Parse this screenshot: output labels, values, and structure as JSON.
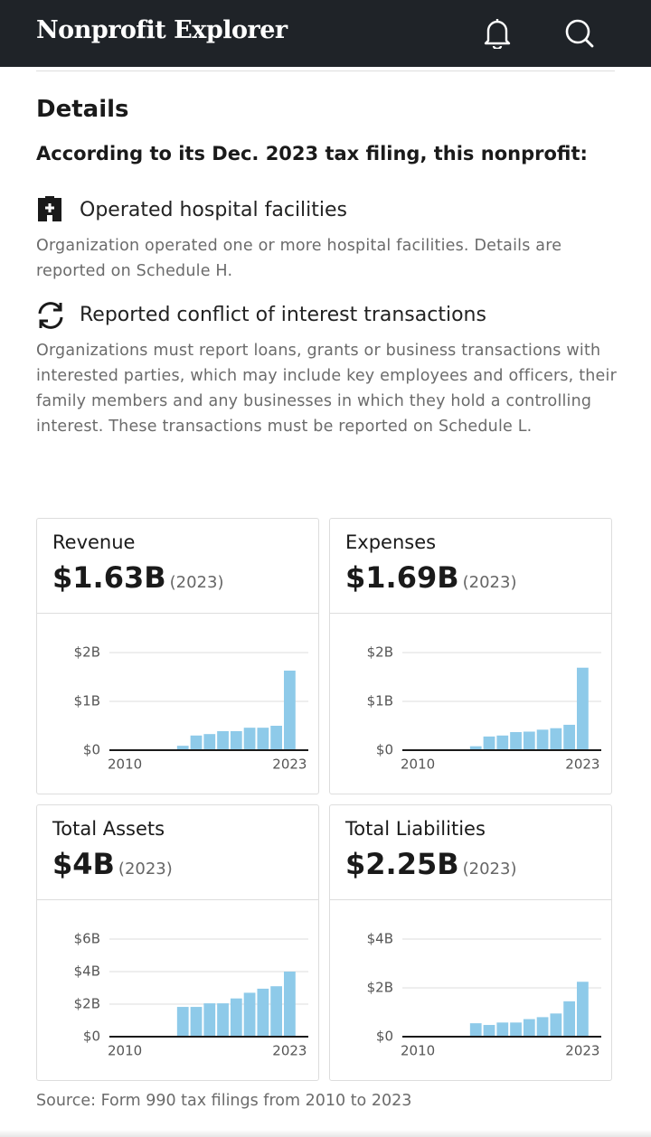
{
  "header": {
    "title": "Nonprofit Explorer"
  },
  "details": {
    "title": "Details",
    "intro": "According to its Dec. 2023 tax filing, this nonprofit:",
    "items": [
      {
        "title": "Operated hospital facilities",
        "text": "Organization operated one or more hospital facilities. Details are reported on Schedule H."
      },
      {
        "title": "Reported conflict of interest transactions",
        "text": "Organizations must report loans, grants or business transactions with interested parties, which may include key employees and officers, their family members and any businesses in which they hold a controlling interest. These transactions must be reported on Schedule L."
      }
    ]
  },
  "chart_data": [
    {
      "type": "bar",
      "title": "Revenue",
      "headline": "$1.63B",
      "year": "(2023)",
      "color": "#8ecae9",
      "categories": [
        "2010",
        null,
        null,
        null,
        null,
        null,
        null,
        null,
        null,
        null,
        null,
        null,
        null,
        "2023"
      ],
      "values": [
        0,
        0,
        0,
        0,
        0,
        0.09,
        0.3,
        0.33,
        0.39,
        0.39,
        0.46,
        0.46,
        0.5,
        1.63
      ],
      "ylim": [
        0,
        2
      ],
      "yticks": [
        {
          "value": 0,
          "label": "$0"
        },
        {
          "value": 1,
          "label": "$1B"
        },
        {
          "value": 2,
          "label": "$2B"
        }
      ],
      "grid": true
    },
    {
      "type": "bar",
      "title": "Expenses",
      "headline": "$1.69B",
      "year": "(2023)",
      "color": "#8ecae9",
      "categories": [
        "2010",
        null,
        null,
        null,
        null,
        null,
        null,
        null,
        null,
        null,
        null,
        null,
        null,
        "2023"
      ],
      "values": [
        0,
        0,
        0,
        0,
        0,
        0.08,
        0.28,
        0.3,
        0.37,
        0.38,
        0.42,
        0.45,
        0.52,
        1.69
      ],
      "ylim": [
        0,
        2
      ],
      "yticks": [
        {
          "value": 0,
          "label": "$0"
        },
        {
          "value": 1,
          "label": "$1B"
        },
        {
          "value": 2,
          "label": "$2B"
        }
      ],
      "grid": true
    },
    {
      "type": "bar",
      "title": "Total Assets",
      "headline": "$4B",
      "year": "(2023)",
      "color": "#8ecae9",
      "categories": [
        "2010",
        null,
        null,
        null,
        null,
        null,
        null,
        null,
        null,
        null,
        null,
        null,
        null,
        "2023"
      ],
      "values": [
        0,
        0,
        0,
        0,
        0,
        1.83,
        1.83,
        2.05,
        2.05,
        2.35,
        2.7,
        2.95,
        3.1,
        4.0
      ],
      "ylim": [
        0,
        6
      ],
      "yticks": [
        {
          "value": 0,
          "label": "$0"
        },
        {
          "value": 2,
          "label": "$2B"
        },
        {
          "value": 4,
          "label": "$4B"
        },
        {
          "value": 6,
          "label": "$6B"
        }
      ],
      "grid": true
    },
    {
      "type": "bar",
      "title": "Total Liabilities",
      "headline": "$2.25B",
      "year": "(2023)",
      "color": "#8ecae9",
      "categories": [
        "2010",
        null,
        null,
        null,
        null,
        null,
        null,
        null,
        null,
        null,
        null,
        null,
        null,
        "2023"
      ],
      "values": [
        0,
        0,
        0,
        0,
        0,
        0.55,
        0.48,
        0.58,
        0.58,
        0.72,
        0.8,
        0.95,
        1.45,
        2.25
      ],
      "ylim": [
        0,
        4
      ],
      "yticks": [
        {
          "value": 0,
          "label": "$0"
        },
        {
          "value": 2,
          "label": "$2B"
        },
        {
          "value": 4,
          "label": "$4B"
        }
      ],
      "grid": true
    }
  ],
  "source": "Source: Form 990 tax filings from 2010 to 2023"
}
